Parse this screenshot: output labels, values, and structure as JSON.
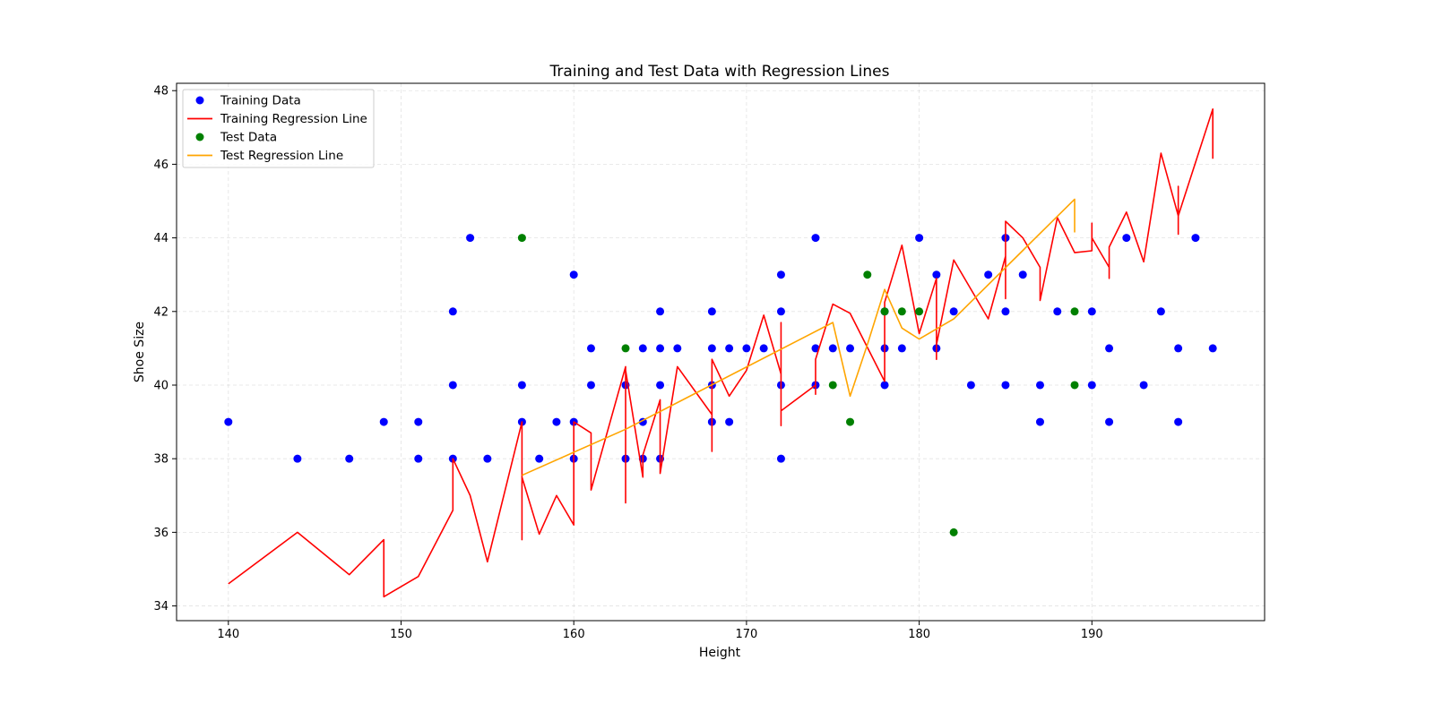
{
  "chart_data": {
    "type": "scatter",
    "title": "Training and Test Data with Regression Lines",
    "xlabel": "Height",
    "ylabel": "Shoe Size",
    "xlim": [
      137,
      200
    ],
    "ylim": [
      33.6,
      48.2
    ],
    "xticks": [
      140,
      150,
      160,
      170,
      180,
      190
    ],
    "yticks": [
      34,
      36,
      38,
      40,
      42,
      44,
      46,
      48
    ],
    "grid": true,
    "legend_position": "top-left",
    "series": [
      {
        "name": "Training Data",
        "kind": "scatter",
        "color": "#0000ff",
        "points": [
          [
            140,
            39
          ],
          [
            144,
            38
          ],
          [
            147,
            38
          ],
          [
            149,
            39
          ],
          [
            151,
            38
          ],
          [
            151,
            39
          ],
          [
            153,
            38
          ],
          [
            153,
            40
          ],
          [
            153,
            42
          ],
          [
            154,
            44
          ],
          [
            155,
            38
          ],
          [
            157,
            39
          ],
          [
            157,
            40
          ],
          [
            158,
            38
          ],
          [
            159,
            39
          ],
          [
            160,
            38
          ],
          [
            160,
            39
          ],
          [
            160,
            43
          ],
          [
            161,
            40
          ],
          [
            161,
            41
          ],
          [
            163,
            38
          ],
          [
            163,
            40
          ],
          [
            164,
            38
          ],
          [
            164,
            39
          ],
          [
            164,
            41
          ],
          [
            165,
            38
          ],
          [
            165,
            40
          ],
          [
            165,
            41
          ],
          [
            165,
            42
          ],
          [
            166,
            41
          ],
          [
            168,
            39
          ],
          [
            168,
            40
          ],
          [
            168,
            41
          ],
          [
            168,
            42
          ],
          [
            169,
            39
          ],
          [
            169,
            41
          ],
          [
            170,
            41
          ],
          [
            171,
            41
          ],
          [
            172,
            38
          ],
          [
            172,
            40
          ],
          [
            172,
            42
          ],
          [
            172,
            43
          ],
          [
            174,
            40
          ],
          [
            174,
            41
          ],
          [
            174,
            44
          ],
          [
            175,
            41
          ],
          [
            176,
            41
          ],
          [
            178,
            40
          ],
          [
            178,
            41
          ],
          [
            178,
            42
          ],
          [
            179,
            41
          ],
          [
            180,
            44
          ],
          [
            181,
            41
          ],
          [
            181,
            43
          ],
          [
            182,
            42
          ],
          [
            183,
            40
          ],
          [
            184,
            43
          ],
          [
            185,
            40
          ],
          [
            185,
            42
          ],
          [
            185,
            44
          ],
          [
            186,
            43
          ],
          [
            187,
            39
          ],
          [
            187,
            40
          ],
          [
            188,
            42
          ],
          [
            190,
            40
          ],
          [
            190,
            42
          ],
          [
            191,
            39
          ],
          [
            191,
            41
          ],
          [
            192,
            44
          ],
          [
            193,
            40
          ],
          [
            194,
            42
          ],
          [
            195,
            39
          ],
          [
            195,
            41
          ],
          [
            196,
            44
          ],
          [
            197,
            41
          ]
        ]
      },
      {
        "name": "Training Regression Line",
        "kind": "line",
        "color": "#ff0000",
        "points": [
          [
            140,
            34.6
          ],
          [
            144,
            36.0
          ],
          [
            147,
            34.85
          ],
          [
            149,
            35.8
          ],
          [
            149,
            34.25
          ],
          [
            151,
            34.8
          ],
          [
            153,
            36.6
          ],
          [
            153,
            38.0
          ],
          [
            154,
            37.0
          ],
          [
            155,
            35.2
          ],
          [
            157,
            39.0
          ],
          [
            157,
            35.8
          ],
          [
            157,
            37.5
          ],
          [
            158,
            35.95
          ],
          [
            159,
            37.0
          ],
          [
            160,
            36.2
          ],
          [
            160,
            39.0
          ],
          [
            161,
            38.7
          ],
          [
            161,
            37.15
          ],
          [
            163,
            40.5
          ],
          [
            163,
            36.8
          ],
          [
            163,
            40.4
          ],
          [
            164,
            37.5
          ],
          [
            164,
            38.1
          ],
          [
            165,
            39.6
          ],
          [
            165,
            37.6
          ],
          [
            166,
            40.5
          ],
          [
            168,
            39.2
          ],
          [
            168,
            38.2
          ],
          [
            168,
            40.7
          ],
          [
            169,
            39.7
          ],
          [
            170,
            40.4
          ],
          [
            171,
            41.9
          ],
          [
            172,
            40.3
          ],
          [
            172,
            41.7
          ],
          [
            172,
            38.9
          ],
          [
            172,
            39.3
          ],
          [
            174,
            40.0
          ],
          [
            174,
            39.75
          ],
          [
            174,
            40.7
          ],
          [
            175,
            42.2
          ],
          [
            176,
            41.95
          ],
          [
            178,
            40.1
          ],
          [
            178,
            42.25
          ],
          [
            179,
            43.8
          ],
          [
            180,
            41.4
          ],
          [
            181,
            42.9
          ],
          [
            181,
            40.7
          ],
          [
            181,
            41.1
          ],
          [
            182,
            43.4
          ],
          [
            184,
            41.8
          ],
          [
            185,
            43.5
          ],
          [
            185,
            42.35
          ],
          [
            185,
            44.45
          ],
          [
            186,
            44.0
          ],
          [
            187,
            43.2
          ],
          [
            187,
            42.3
          ],
          [
            188,
            44.55
          ],
          [
            189,
            43.6
          ],
          [
            190,
            43.65
          ],
          [
            190,
            44.4
          ],
          [
            190,
            44.0
          ],
          [
            191,
            43.2
          ],
          [
            191,
            42.9
          ],
          [
            191,
            43.75
          ],
          [
            192,
            44.7
          ],
          [
            193,
            43.35
          ],
          [
            194,
            46.3
          ],
          [
            195,
            44.6
          ],
          [
            195,
            44.1
          ],
          [
            195,
            45.4
          ],
          [
            195,
            44.6
          ],
          [
            196,
            46.05
          ],
          [
            197,
            47.5
          ],
          [
            197,
            46.15
          ]
        ]
      },
      {
        "name": "Test Data",
        "kind": "scatter",
        "color": "#008000",
        "points": [
          [
            157,
            44
          ],
          [
            163,
            41
          ],
          [
            175,
            40
          ],
          [
            176,
            39
          ],
          [
            177,
            43
          ],
          [
            178,
            42
          ],
          [
            179,
            42
          ],
          [
            180,
            42
          ],
          [
            182,
            36
          ],
          [
            189,
            40
          ],
          [
            189,
            42
          ]
        ]
      },
      {
        "name": "Test Regression Line",
        "kind": "line",
        "color": "#ffa500",
        "points": [
          [
            157,
            37.55
          ],
          [
            163,
            38.8
          ],
          [
            175,
            41.7
          ],
          [
            176,
            39.7
          ],
          [
            177,
            41.1
          ],
          [
            178,
            42.6
          ],
          [
            179,
            41.55
          ],
          [
            180,
            41.25
          ],
          [
            182,
            41.8
          ],
          [
            189,
            45.05
          ],
          [
            189,
            44.15
          ]
        ]
      }
    ]
  }
}
